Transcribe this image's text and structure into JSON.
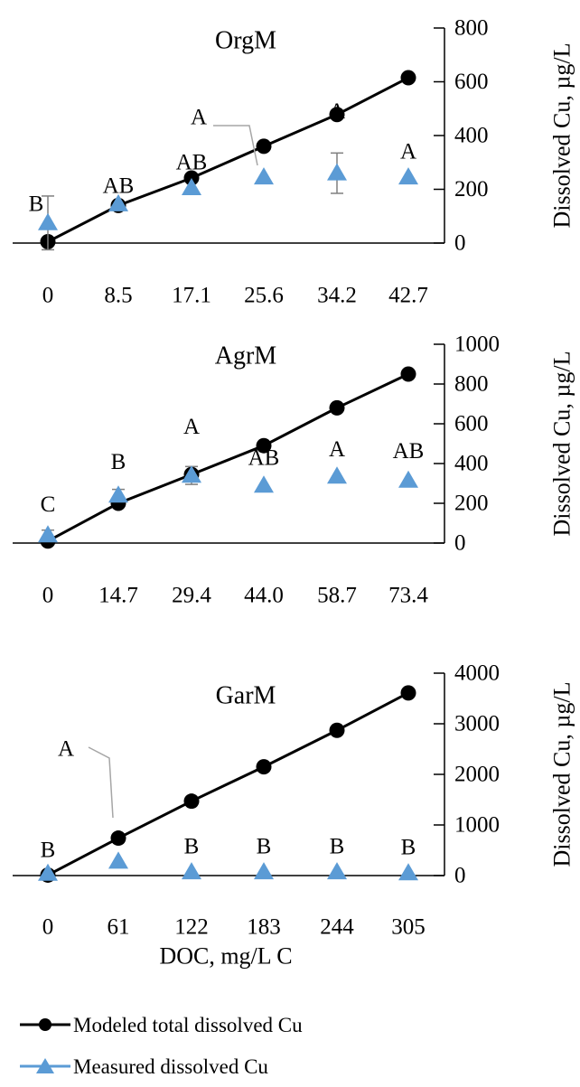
{
  "colors": {
    "modeled": "#000000",
    "measured": "#5b9bd5",
    "errorbar": "#7f7f7f",
    "leader": "#a6a6a6"
  },
  "legend": {
    "modeled": "Modeled total dissolved Cu",
    "measured": "Measured dissolved Cu"
  },
  "chart_data": [
    {
      "type": "line",
      "title": "OrgM",
      "xlabel": "",
      "ylabel": "Dissolved Cu, µg/L",
      "y_axis_side": "right",
      "ylim": [
        0,
        800
      ],
      "yticks": [
        "0",
        "200",
        "400",
        "600",
        "800"
      ],
      "categories": [
        "0",
        "8.5",
        "17.1",
        "25.6",
        "34.2",
        "42.7"
      ],
      "series": [
        {
          "name": "Modeled total dissolved Cu",
          "marker": "circle",
          "values": [
            5,
            140,
            242,
            360,
            478,
            615
          ]
        },
        {
          "name": "Measured dissolved Cu",
          "marker": "triangle",
          "values": [
            75,
            145,
            205,
            245,
            260,
            245
          ],
          "error": [
            100,
            0,
            0,
            0,
            75,
            0
          ]
        }
      ],
      "letters": [
        "B",
        "AB",
        "AB",
        "A",
        "A",
        "A"
      ]
    },
    {
      "type": "line",
      "title": "AgrM",
      "xlabel": "",
      "ylabel": "Dissolved Cu, µg/L",
      "y_axis_side": "right",
      "ylim": [
        0,
        1000
      ],
      "yticks": [
        "0",
        "200",
        "400",
        "600",
        "800",
        "1000"
      ],
      "categories": [
        "0",
        "14.7",
        "29.4",
        "44.0",
        "58.7",
        "73.4"
      ],
      "series": [
        {
          "name": "Modeled total dissolved Cu",
          "marker": "circle",
          "values": [
            10,
            200,
            345,
            490,
            680,
            850
          ]
        },
        {
          "name": "Measured dissolved Cu",
          "marker": "triangle",
          "values": [
            40,
            240,
            340,
            290,
            335,
            315
          ],
          "error": [
            25,
            30,
            45,
            0,
            0,
            0
          ]
        }
      ],
      "letters": [
        "C",
        "B",
        "A",
        "AB",
        "A",
        "AB"
      ]
    },
    {
      "type": "line",
      "title": "GarM",
      "xlabel": "DOC, mg/L C",
      "ylabel": "Dissolved Cu, µg/L",
      "y_axis_side": "right",
      "ylim": [
        0,
        4000
      ],
      "yticks": [
        "0",
        "1000",
        "2000",
        "3000",
        "4000"
      ],
      "categories": [
        "0",
        "61",
        "122",
        "183",
        "244",
        "305"
      ],
      "series": [
        {
          "name": "Modeled total dissolved Cu",
          "marker": "circle",
          "values": [
            10,
            740,
            1470,
            2150,
            2870,
            3610
          ]
        },
        {
          "name": "Measured dissolved Cu",
          "marker": "triangle",
          "values": [
            40,
            280,
            70,
            70,
            70,
            50
          ],
          "error": [
            0,
            0,
            0,
            0,
            0,
            0
          ]
        }
      ],
      "letters": [
        "B",
        "A",
        "B",
        "B",
        "B",
        "B"
      ]
    }
  ]
}
